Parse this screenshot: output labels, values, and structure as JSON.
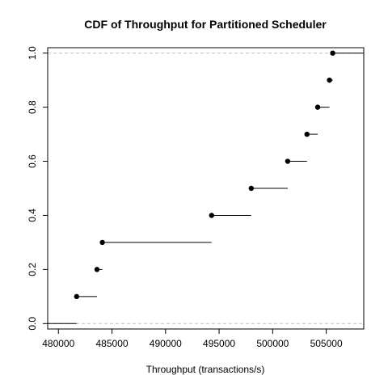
{
  "chart_data": {
    "type": "step",
    "title": "CDF of Throughput for Partitioned Scheduler",
    "xlabel": "Throughput (transactions/s)",
    "ylabel": "",
    "xlim": [
      479000,
      508500
    ],
    "ylim": [
      -0.02,
      1.02
    ],
    "x_ticks": [
      480000,
      485000,
      490000,
      495000,
      500000,
      505000
    ],
    "x_tick_labels": [
      "480000",
      "485000",
      "490000",
      "495000",
      "500000",
      "505000"
    ],
    "y_ticks": [
      0.0,
      0.2,
      0.4,
      0.6,
      0.8,
      1.0
    ],
    "y_tick_labels": [
      "0.0",
      "0.2",
      "0.4",
      "0.6",
      "0.8",
      "1.0"
    ],
    "reference_lines": [
      0,
      1
    ],
    "points": [
      {
        "x": 481700,
        "y": 0.1
      },
      {
        "x": 483600,
        "y": 0.2
      },
      {
        "x": 484100,
        "y": 0.3
      },
      {
        "x": 494300,
        "y": 0.4
      },
      {
        "x": 498000,
        "y": 0.5
      },
      {
        "x": 501400,
        "y": 0.6
      },
      {
        "x": 503200,
        "y": 0.7
      },
      {
        "x": 504200,
        "y": 0.8
      },
      {
        "x": 505300,
        "y": 0.9
      },
      {
        "x": 505600,
        "y": 1.0
      }
    ],
    "colors": {
      "points": "#000000",
      "steps": "#000000",
      "reference": "#bfbfbf",
      "frame": "#000000"
    }
  }
}
